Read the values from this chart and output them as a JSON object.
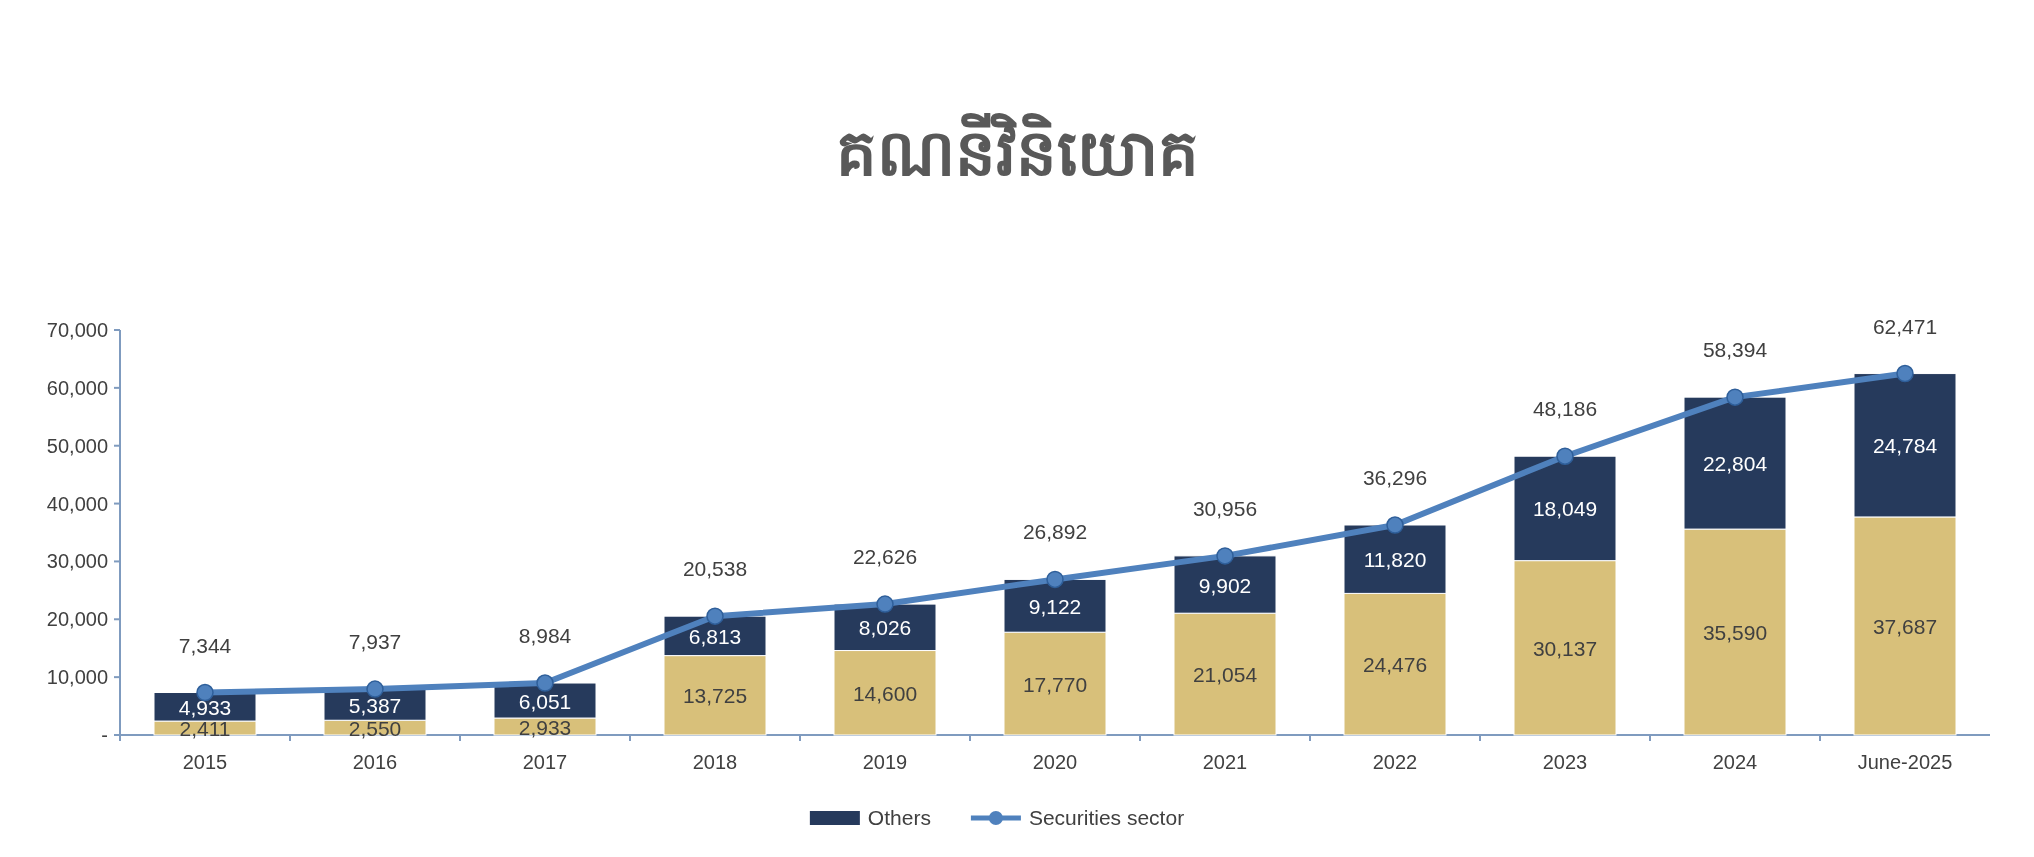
{
  "chart_data": {
    "type": "bar",
    "stacked": true,
    "title": "គណនីវិនិយោគ",
    "categories": [
      "2015",
      "2016",
      "2017",
      "2018",
      "2019",
      "2020",
      "2021",
      "2022",
      "2023",
      "2024",
      "June-2025"
    ],
    "series": [
      {
        "color": "#d8c07a",
        "values": [
          2411,
          2550,
          2933,
          13725,
          14600,
          17770,
          21054,
          24476,
          30137,
          35590,
          37687
        ],
        "value_labels": [
          "2,411",
          "2,550",
          "2,933",
          "13,725",
          "14,600",
          "17,770",
          "21,054",
          "24,476",
          "30,137",
          "35,590",
          "37,687"
        ]
      },
      {
        "name": "Others",
        "color": "#263a5c",
        "values": [
          4933,
          5387,
          6051,
          6813,
          8026,
          9122,
          9902,
          11820,
          18049,
          22804,
          24784
        ],
        "value_labels": [
          "4,933",
          "5,387",
          "6,051",
          "6,813",
          "8,026",
          "9,122",
          "9,902",
          "11,820",
          "18,049",
          "22,804",
          "24,784"
        ]
      },
      {
        "name": "Securities sector",
        "type": "line",
        "marker": "circle",
        "color": "#4f81bd",
        "values": [
          7344,
          7937,
          8984,
          20538,
          22626,
          26892,
          30956,
          36296,
          48186,
          58394,
          62471
        ],
        "value_labels": [
          "7,344",
          "7,937",
          "8,984",
          "20,538",
          "22,626",
          "26,892",
          "30,956",
          "36,296",
          "48,186",
          "58,394",
          "62,471"
        ]
      }
    ],
    "ylim": [
      0,
      70000
    ],
    "yticks": [
      {
        "value": 0,
        "label": "-"
      },
      {
        "value": 10000,
        "label": "10,000"
      },
      {
        "value": 20000,
        "label": "20,000"
      },
      {
        "value": 30000,
        "label": "30,000"
      },
      {
        "value": 40000,
        "label": "40,000"
      },
      {
        "value": 50000,
        "label": "50,000"
      },
      {
        "value": 60000,
        "label": "60,000"
      },
      {
        "value": 70000,
        "label": "70,000"
      }
    ],
    "legend": "bottom"
  }
}
